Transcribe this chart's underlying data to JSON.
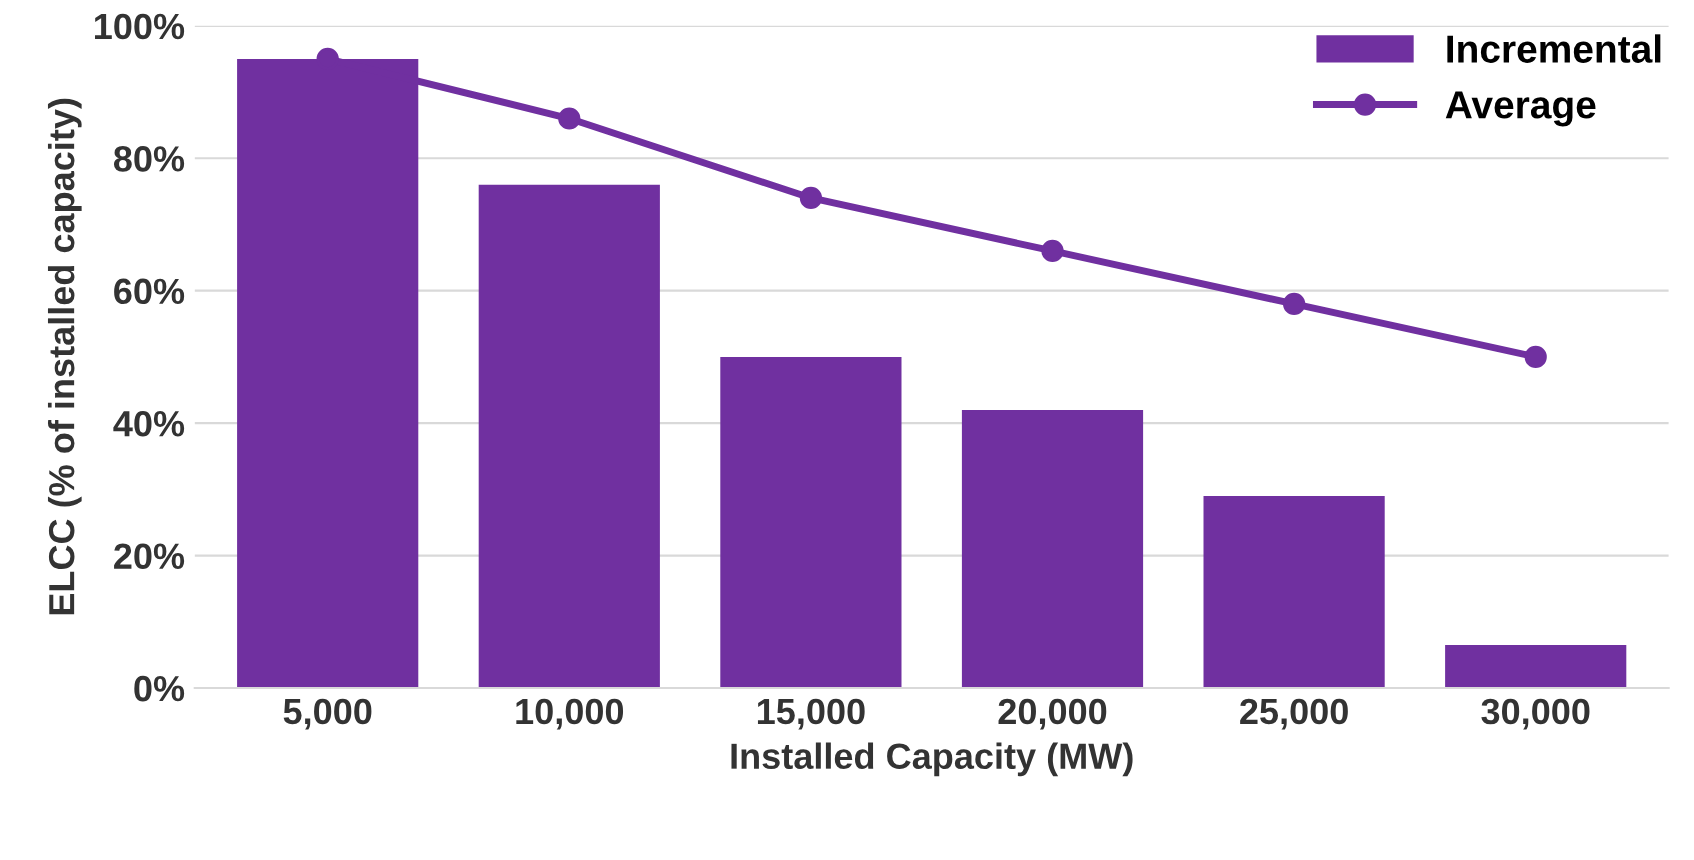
{
  "chart_data": {
    "type": "bar",
    "xlabel": "Installed Capacity (MW)",
    "ylabel": "ELCC (% of installed capacity)",
    "categories": [
      "5,000",
      "10,000",
      "15,000",
      "20,000",
      "25,000",
      "30,000"
    ],
    "series": [
      {
        "name": "Incremental",
        "color": "#7030a0",
        "values": [
          95,
          76,
          50,
          42,
          29,
          6.5
        ]
      },
      {
        "name": "Average",
        "type": "line",
        "color": "#7030a0",
        "marker": "circle",
        "values": [
          95,
          86,
          74,
          66,
          58,
          50
        ]
      }
    ],
    "ylim": [
      0,
      100
    ],
    "yticks": [
      {
        "value": 0,
        "label": "0%"
      },
      {
        "value": 20,
        "label": "20%"
      },
      {
        "value": 40,
        "label": "40%"
      },
      {
        "value": 60,
        "label": "60%"
      },
      {
        "value": 80,
        "label": "80%"
      },
      {
        "value": 100,
        "label": "100%"
      }
    ],
    "grid": "y",
    "legend": "top right"
  }
}
